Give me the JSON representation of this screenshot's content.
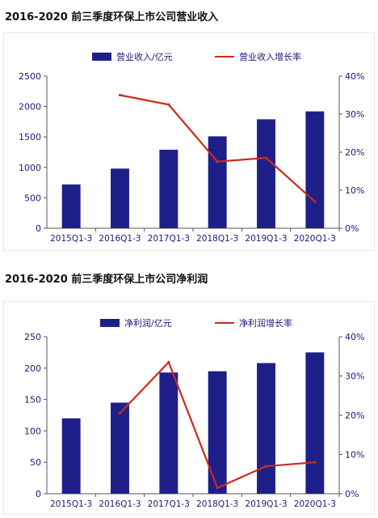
{
  "chart_data": [
    {
      "type": "bar+line",
      "title": "2016-2020 前三季度环保上市公司营业收入",
      "categories": [
        "2015Q1-3",
        "2016Q1-3",
        "2017Q1-3",
        "2018Q1-3",
        "2019Q1-3",
        "2020Q1-3"
      ],
      "series": [
        {
          "name": "营业收入/亿元",
          "kind": "bar",
          "axis": "left",
          "values": [
            720,
            980,
            1290,
            1510,
            1790,
            1920
          ],
          "color": "#1f1f8a"
        },
        {
          "name": "营业收入增长率",
          "kind": "line",
          "axis": "right",
          "values": [
            null,
            35,
            32.5,
            17.5,
            18.5,
            7
          ],
          "color": "#cc2a1a"
        }
      ],
      "ylim_left": [
        0,
        2500
      ],
      "yticks_left": [
        "0",
        "500",
        "1000",
        "1500",
        "2000",
        "2500"
      ],
      "ylim_right": [
        0,
        40
      ],
      "yticks_right": [
        "0%",
        "10%",
        "20%",
        "30%",
        "40%"
      ],
      "legend_position": "top"
    },
    {
      "type": "bar+line",
      "title": "2016-2020 前三季度环保上市公司净利润",
      "categories": [
        "2015Q1-3",
        "2016Q1-3",
        "2017Q1-3",
        "2018Q1-3",
        "2019Q1-3",
        "2020Q1-3"
      ],
      "series": [
        {
          "name": "净利润/亿元",
          "kind": "bar",
          "axis": "left",
          "values": [
            120,
            145,
            193,
            195,
            208,
            225
          ],
          "color": "#1f1f8a"
        },
        {
          "name": "净利润增长率",
          "kind": "line",
          "axis": "right",
          "values": [
            null,
            20.5,
            33.5,
            1.5,
            7,
            8
          ],
          "color": "#cc2a1a"
        }
      ],
      "ylim_left": [
        0,
        250
      ],
      "yticks_left": [
        "0",
        "50",
        "100",
        "150",
        "200",
        "250"
      ],
      "ylim_right": [
        0,
        40
      ],
      "yticks_right": [
        "0%",
        "10%",
        "20%",
        "30%",
        "40%"
      ],
      "legend_position": "top"
    }
  ]
}
